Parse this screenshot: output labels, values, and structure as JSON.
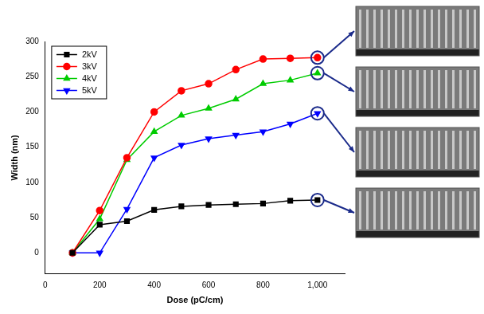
{
  "chart_data": {
    "type": "line",
    "x_label": "Dose (pC/cm)",
    "y_label": "Width (nm)",
    "x": [
      100,
      200,
      300,
      400,
      500,
      600,
      700,
      800,
      900,
      1000
    ],
    "series": [
      {
        "name": "2kV",
        "color": "#000000",
        "marker": "square",
        "values": [
          0,
          40,
          45,
          61,
          66,
          68,
          69,
          70,
          74,
          75
        ]
      },
      {
        "name": "3kV",
        "color": "#ff0000",
        "marker": "circle",
        "values": [
          0,
          60,
          135,
          200,
          230,
          240,
          260,
          275,
          276,
          277
        ]
      },
      {
        "name": "4kV",
        "color": "#00cc00",
        "marker": "triangle_up",
        "values": [
          0,
          48,
          132,
          172,
          195,
          205,
          218,
          240,
          245,
          255
        ]
      },
      {
        "name": "5kV",
        "color": "#0000ff",
        "marker": "triangle_down",
        "values": [
          0,
          0,
          62,
          135,
          153,
          162,
          167,
          172,
          183,
          198
        ]
      }
    ],
    "xlim": [
      0,
      1100
    ],
    "xticks": [
      0,
      200,
      400,
      600,
      800,
      1000
    ],
    "ylim": [
      -30,
      300
    ],
    "yticks": [
      0,
      50,
      100,
      150,
      200,
      250,
      300
    ],
    "grid": false,
    "legend": "upper left"
  }
}
